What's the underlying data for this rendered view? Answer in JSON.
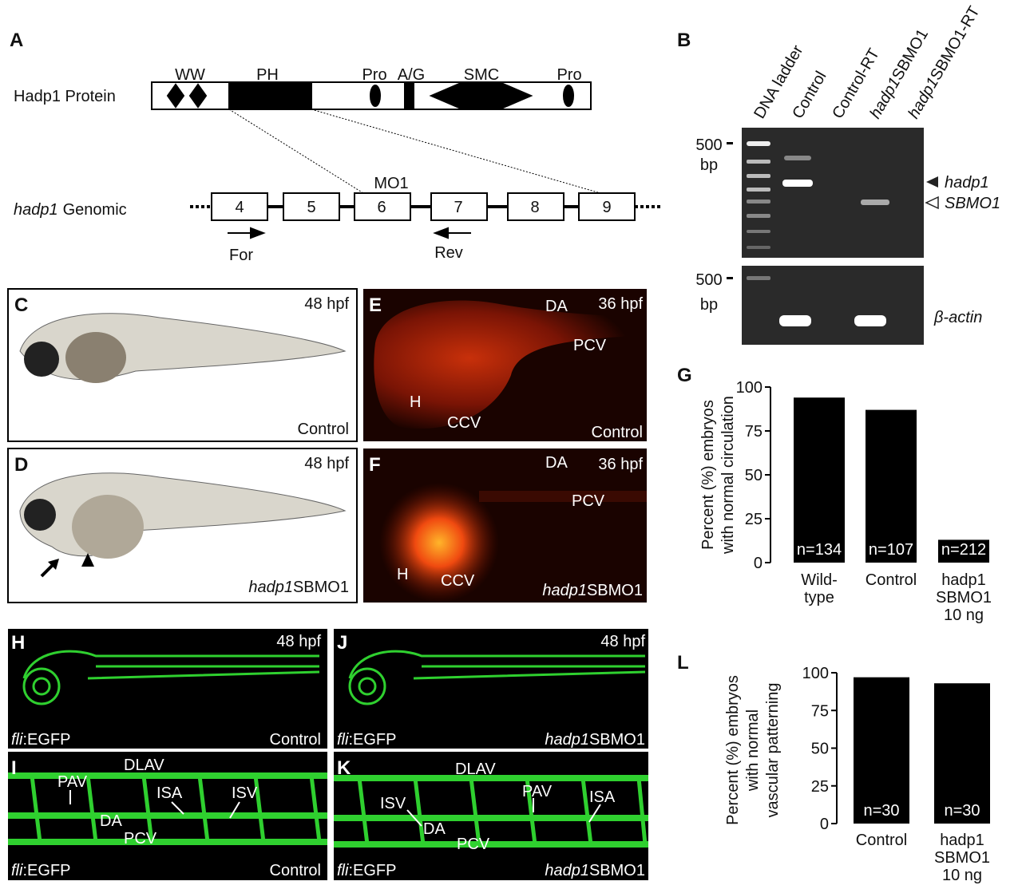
{
  "panels": {
    "A": {
      "letter": "A",
      "protein_label": "Hadp1 Protein",
      "domains": [
        "WW",
        "PH",
        "Pro",
        "A/G",
        "SMC",
        "Pro"
      ],
      "genomic_label": {
        "italic": "hadp1",
        "text": "Genomic"
      },
      "exons": [
        "4",
        "5",
        "6",
        "7",
        "8",
        "9"
      ],
      "morpholino": "MO1",
      "forward_primer": "For",
      "reverse_primer": "Rev"
    },
    "B": {
      "letter": "B",
      "lanes": [
        {
          "text": "DNA ladder"
        },
        {
          "text": "Control"
        },
        {
          "text": "Control-RT"
        },
        {
          "italic": "hadp1",
          "text": "SBMO1"
        },
        {
          "italic": "hadp1",
          "text": "SBMO1-RT"
        }
      ],
      "markers": [
        {
          "size": "500",
          "unit": "bp"
        },
        {
          "size": "500",
          "unit": "bp"
        }
      ],
      "band_labels": [
        "hadp1",
        "SBMO1",
        "β-actin"
      ]
    },
    "C": {
      "letter": "C",
      "time": "48 hpf",
      "condition": "Control"
    },
    "D": {
      "letter": "D",
      "time": "48 hpf",
      "condition": {
        "italic": "hadp1",
        "text": "SBMO1"
      }
    },
    "E": {
      "letter": "E",
      "time": "36 hpf",
      "condition": "Control",
      "labels": [
        "DA",
        "PCV",
        "H",
        "CCV"
      ]
    },
    "F": {
      "letter": "F",
      "time": "36 hpf",
      "condition": {
        "italic": "hadp1",
        "text": "SBMO1"
      },
      "labels": [
        "DA",
        "PCV",
        "H",
        "CCV"
      ]
    },
    "G": {
      "letter": "G"
    },
    "H": {
      "letter": "H",
      "time": "48 hpf",
      "reporter": {
        "italic": "fli",
        "text": ":EGFP"
      },
      "condition": "Control"
    },
    "I": {
      "letter": "I",
      "reporter": {
        "italic": "fli",
        "text": ":EGFP"
      },
      "condition": "Control",
      "labels": [
        "DLAV",
        "PAV",
        "ISA",
        "ISV",
        "DA",
        "PCV"
      ]
    },
    "J": {
      "letter": "J",
      "time": "48 hpf",
      "reporter": {
        "italic": "fli",
        "text": ":EGFP"
      },
      "condition": {
        "italic": "hadp1",
        "text": "SBMO1"
      }
    },
    "K": {
      "letter": "K",
      "reporter": {
        "italic": "fli",
        "text": ":EGFP"
      },
      "condition": {
        "italic": "hadp1",
        "text": "SBMO1"
      },
      "labels": [
        "DLAV",
        "ISV",
        "PAV",
        "ISA",
        "DA",
        "PCV"
      ]
    },
    "L": {
      "letter": "L"
    }
  },
  "chart_data": [
    {
      "type": "bar",
      "ylabel": [
        "Percent (%) embryos",
        "with normal circulation"
      ],
      "categories": [
        "Wild-type",
        "Control",
        "hadp1 SBMO1 10 ng"
      ],
      "values": [
        94,
        87,
        13
      ],
      "annotations": [
        "n=134",
        "n=107",
        "n=212"
      ],
      "color": "#000000",
      "ylim": [
        0,
        100
      ],
      "yticks": [
        0,
        25,
        50,
        75,
        100
      ]
    },
    {
      "type": "bar",
      "ylabel": [
        "Percent (%) embryos",
        "with normal",
        "vascular patterning"
      ],
      "categories": [
        "Control",
        "hadp1 SBMO1 10 ng"
      ],
      "values": [
        97,
        93
      ],
      "annotations": [
        "n=30",
        "n=30"
      ],
      "color": "#000000",
      "ylim": [
        0,
        100
      ],
      "yticks": [
        0,
        25,
        50,
        75,
        100
      ]
    }
  ]
}
